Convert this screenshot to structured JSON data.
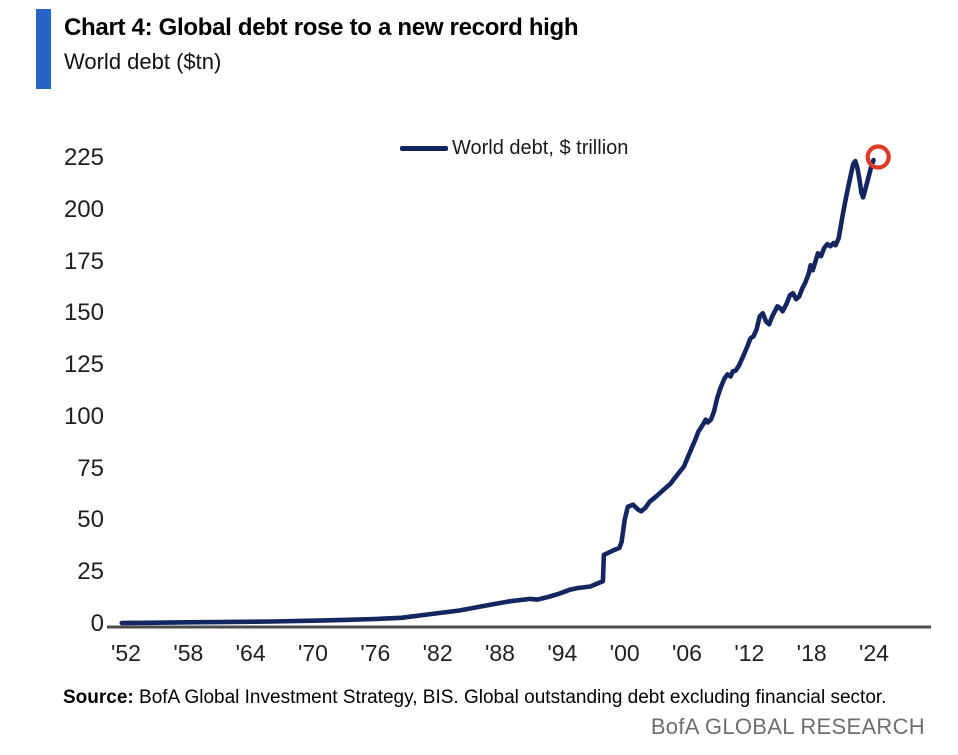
{
  "header": {
    "title": "Chart 4: Global debt rose to a new record high",
    "subtitle": "World debt ($tn)"
  },
  "footer": {
    "source_label": "Source:",
    "source_text": "BofA Global Investment Strategy, BIS. Global outstanding debt excluding financial sector.",
    "branding": "BofA GLOBAL RESEARCH"
  },
  "colors": {
    "accent_bar_blue": "#2664c6",
    "line_navy": "#14265f",
    "highlight_red": "#de3a28",
    "axis_gray": "#4d4d4d",
    "tick_text": "#1f1f1f",
    "branding_gray": "#6e6e6e"
  },
  "chart_data": {
    "type": "line",
    "title": "Chart 4: Global debt rose to a new record high",
    "subtitle": "World debt ($tn)",
    "xlabel": "",
    "ylabel": "",
    "grid": false,
    "legend_position": "top-center",
    "legend": [
      "World debt, $ trillion"
    ],
    "y_ticks": [
      0,
      25,
      50,
      75,
      100,
      125,
      150,
      175,
      200,
      225
    ],
    "ylim": [
      0,
      225
    ],
    "x_tick_labels": [
      "'52",
      "'58",
      "'64",
      "'70",
      "'76",
      "'82",
      "'88",
      "'94",
      "'00",
      "'06",
      "'12",
      "'18",
      "'24"
    ],
    "x_tick_years": [
      1952,
      1958,
      1964,
      1970,
      1976,
      1982,
      1988,
      1994,
      2000,
      2006,
      2012,
      2018,
      2024
    ],
    "xlim": [
      1951.5,
      2025.5
    ],
    "series": [
      {
        "name": "World debt, $ trillion",
        "color": "#14265f",
        "points": [
          [
            1951.6,
            0.5
          ],
          [
            1954,
            0.6
          ],
          [
            1958,
            0.8
          ],
          [
            1962,
            1.0
          ],
          [
            1966,
            1.2
          ],
          [
            1970,
            1.6
          ],
          [
            1973,
            2.0
          ],
          [
            1976,
            2.4
          ],
          [
            1978.5,
            3.0
          ],
          [
            1981.3,
            4.8
          ],
          [
            1984.1,
            6.5
          ],
          [
            1987.0,
            9.2
          ],
          [
            1989.0,
            11.0
          ],
          [
            1990.9,
            12.1
          ],
          [
            1991.6,
            11.8
          ],
          [
            1992.8,
            13.3
          ],
          [
            1993.8,
            14.8
          ],
          [
            1994.7,
            16.5
          ],
          [
            1995.5,
            17.4
          ],
          [
            1996.7,
            18.1
          ],
          [
            1997.4,
            19.6
          ],
          [
            1997.9,
            20.6
          ],
          [
            1998.0,
            33.4
          ],
          [
            1998.8,
            35.3
          ],
          [
            1999.5,
            36.8
          ],
          [
            1999.7,
            39.7
          ],
          [
            2000.0,
            50.3
          ],
          [
            2000.3,
            56.6
          ],
          [
            2000.8,
            57.6
          ],
          [
            2001.3,
            55.2
          ],
          [
            2001.6,
            54.4
          ],
          [
            2002.0,
            56.1
          ],
          [
            2002.4,
            59.0
          ],
          [
            2003.1,
            61.9
          ],
          [
            2003.7,
            64.6
          ],
          [
            2004.4,
            67.7
          ],
          [
            2005.0,
            71.6
          ],
          [
            2005.7,
            76.0
          ],
          [
            2006.3,
            83.2
          ],
          [
            2006.8,
            89.0
          ],
          [
            2007.1,
            92.9
          ],
          [
            2007.6,
            96.8
          ],
          [
            2007.8,
            98.7
          ],
          [
            2008.0,
            97.3
          ],
          [
            2008.3,
            98.7
          ],
          [
            2008.6,
            102.6
          ],
          [
            2008.9,
            108.9
          ],
          [
            2009.2,
            113.7
          ],
          [
            2009.6,
            118.5
          ],
          [
            2009.9,
            120.5
          ],
          [
            2010.2,
            119.5
          ],
          [
            2010.4,
            121.9
          ],
          [
            2010.7,
            122.4
          ],
          [
            2011.0,
            124.8
          ],
          [
            2011.4,
            129.2
          ],
          [
            2011.8,
            134.0
          ],
          [
            2012.1,
            137.9
          ],
          [
            2012.4,
            138.9
          ],
          [
            2012.7,
            142.3
          ],
          [
            2013.0,
            148.5
          ],
          [
            2013.3,
            150.0
          ],
          [
            2013.6,
            146.1
          ],
          [
            2013.9,
            144.7
          ],
          [
            2014.2,
            148.5
          ],
          [
            2014.7,
            153.4
          ],
          [
            2015.0,
            152.4
          ],
          [
            2015.2,
            151.0
          ],
          [
            2015.6,
            154.8
          ],
          [
            2015.9,
            158.7
          ],
          [
            2016.2,
            159.7
          ],
          [
            2016.5,
            156.8
          ],
          [
            2016.8,
            158.2
          ],
          [
            2017.1,
            162.1
          ],
          [
            2017.4,
            165.0
          ],
          [
            2017.7,
            169.0
          ],
          [
            2017.9,
            173.2
          ],
          [
            2018.1,
            170.8
          ],
          [
            2018.4,
            175.6
          ],
          [
            2018.6,
            179.0
          ],
          [
            2018.9,
            177.6
          ],
          [
            2019.2,
            181.5
          ],
          [
            2019.5,
            183.4
          ],
          [
            2019.8,
            182.4
          ],
          [
            2020.1,
            183.9
          ],
          [
            2020.3,
            182.9
          ],
          [
            2020.6,
            186.3
          ],
          [
            2020.9,
            195.0
          ],
          [
            2021.2,
            203.2
          ],
          [
            2021.5,
            210.5
          ],
          [
            2021.8,
            217.7
          ],
          [
            2022.0,
            222.1
          ],
          [
            2022.2,
            223.5
          ],
          [
            2022.4,
            220.2
          ],
          [
            2022.6,
            214.5
          ],
          [
            2022.8,
            208.0
          ],
          [
            2022.95,
            206.0
          ],
          [
            2023.2,
            210.5
          ],
          [
            2023.5,
            216.3
          ],
          [
            2023.75,
            221.1
          ],
          [
            2023.95,
            224.0
          ]
        ]
      }
    ],
    "annotation": {
      "type": "circle",
      "label": "latest-data-point-highlight",
      "year": 2024.4,
      "value": 225.5,
      "color": "#de3a28"
    }
  }
}
